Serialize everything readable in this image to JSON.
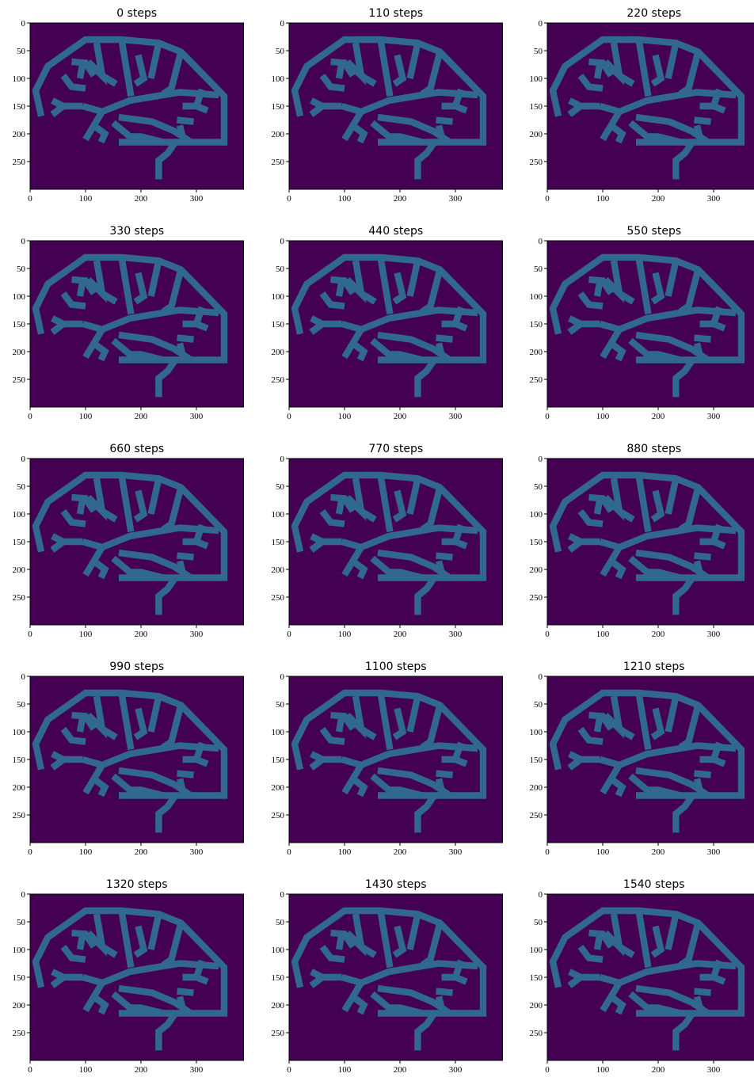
{
  "chart_data": [
    {
      "type": "image",
      "title": "0 steps",
      "xlim": [
        0,
        385
      ],
      "ylim": [
        300,
        0
      ],
      "xticks": [
        0,
        100,
        200,
        300
      ],
      "yticks": [
        0,
        50,
        100,
        150,
        200,
        250
      ]
    },
    {
      "type": "image",
      "title": "110 steps",
      "xlim": [
        0,
        385
      ],
      "ylim": [
        300,
        0
      ],
      "xticks": [
        0,
        100,
        200,
        300
      ],
      "yticks": [
        0,
        50,
        100,
        150,
        200,
        250
      ]
    },
    {
      "type": "image",
      "title": "220 steps",
      "xlim": [
        0,
        385
      ],
      "ylim": [
        300,
        0
      ],
      "xticks": [
        0,
        100,
        200,
        300
      ],
      "yticks": [
        0,
        50,
        100,
        150,
        200,
        250
      ]
    },
    {
      "type": "image",
      "title": "330 steps",
      "xlim": [
        0,
        385
      ],
      "ylim": [
        300,
        0
      ],
      "xticks": [
        0,
        100,
        200,
        300
      ],
      "yticks": [
        0,
        50,
        100,
        150,
        200,
        250
      ]
    },
    {
      "type": "image",
      "title": "440 steps",
      "xlim": [
        0,
        385
      ],
      "ylim": [
        300,
        0
      ],
      "xticks": [
        0,
        100,
        200,
        300
      ],
      "yticks": [
        0,
        50,
        100,
        150,
        200,
        250
      ]
    },
    {
      "type": "image",
      "title": "550 steps",
      "xlim": [
        0,
        385
      ],
      "ylim": [
        300,
        0
      ],
      "xticks": [
        0,
        100,
        200,
        300
      ],
      "yticks": [
        0,
        50,
        100,
        150,
        200,
        250
      ]
    },
    {
      "type": "image",
      "title": "660 steps",
      "xlim": [
        0,
        385
      ],
      "ylim": [
        300,
        0
      ],
      "xticks": [
        0,
        100,
        200,
        300
      ],
      "yticks": [
        0,
        50,
        100,
        150,
        200,
        250
      ]
    },
    {
      "type": "image",
      "title": "770 steps",
      "xlim": [
        0,
        385
      ],
      "ylim": [
        300,
        0
      ],
      "xticks": [
        0,
        100,
        200,
        300
      ],
      "yticks": [
        0,
        50,
        100,
        150,
        200,
        250
      ]
    },
    {
      "type": "image",
      "title": "880 steps",
      "xlim": [
        0,
        385
      ],
      "ylim": [
        300,
        0
      ],
      "xticks": [
        0,
        100,
        200,
        300
      ],
      "yticks": [
        0,
        50,
        100,
        150,
        200,
        250
      ]
    },
    {
      "type": "image",
      "title": "990 steps",
      "xlim": [
        0,
        385
      ],
      "ylim": [
        300,
        0
      ],
      "xticks": [
        0,
        100,
        200,
        300
      ],
      "yticks": [
        0,
        50,
        100,
        150,
        200,
        250
      ]
    },
    {
      "type": "image",
      "title": "1100 steps",
      "xlim": [
        0,
        385
      ],
      "ylim": [
        300,
        0
      ],
      "xticks": [
        0,
        100,
        200,
        300
      ],
      "yticks": [
        0,
        50,
        100,
        150,
        200,
        250
      ]
    },
    {
      "type": "image",
      "title": "1210 steps",
      "xlim": [
        0,
        385
      ],
      "ylim": [
        300,
        0
      ],
      "xticks": [
        0,
        100,
        200,
        300
      ],
      "yticks": [
        0,
        50,
        100,
        150,
        200,
        250
      ]
    },
    {
      "type": "image",
      "title": "1320 steps",
      "xlim": [
        0,
        385
      ],
      "ylim": [
        300,
        0
      ],
      "xticks": [
        0,
        100,
        200,
        300
      ],
      "yticks": [
        0,
        50,
        100,
        150,
        200,
        250
      ]
    },
    {
      "type": "image",
      "title": "1430 steps",
      "xlim": [
        0,
        385
      ],
      "ylim": [
        300,
        0
      ],
      "xticks": [
        0,
        100,
        200,
        300
      ],
      "yticks": [
        0,
        50,
        100,
        150,
        200,
        250
      ]
    },
    {
      "type": "image",
      "title": "1540 steps",
      "xlim": [
        0,
        385
      ],
      "ylim": [
        300,
        0
      ],
      "xticks": [
        0,
        100,
        200,
        300
      ],
      "yticks": [
        0,
        50,
        100,
        150,
        200,
        250
      ]
    }
  ]
}
